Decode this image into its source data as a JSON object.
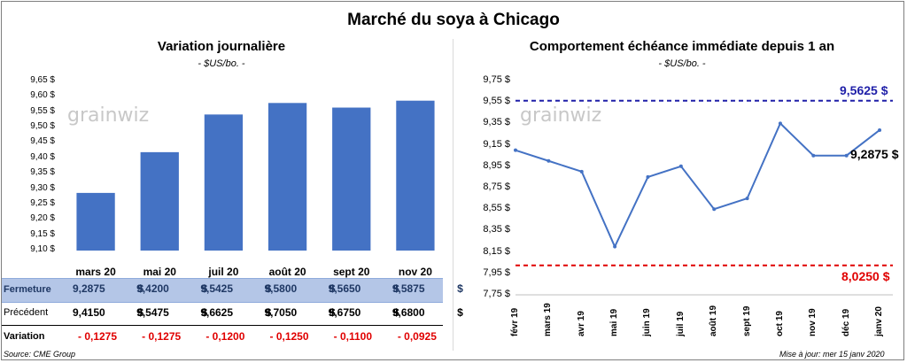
{
  "title": "Marché du soya à Chicago",
  "left": {
    "subtitle": "Variation journalière",
    "unit": "- $US/bo. -",
    "watermark": "grainwiz",
    "yticks": [
      "9,65 $",
      "9,60 $",
      "9,55 $",
      "9,50 $",
      "9,45 $",
      "9,40 $",
      "9,35 $",
      "9,30 $",
      "9,25 $",
      "9,20 $",
      "9,15 $",
      "9,10 $"
    ],
    "table": {
      "fermeture_label": "Fermeture",
      "precedent_label": "Précédent",
      "variation_label": "Variation",
      "fermeture": [
        "9,2875",
        "9,4200",
        "9,5425",
        "9,5800",
        "9,5650",
        "9,5875"
      ],
      "precedent": [
        "9,4150",
        "9,5475",
        "9,6625",
        "9,7050",
        "9,6750",
        "9,6800"
      ],
      "variation": [
        "- 0,1275",
        "- 0,1275",
        "- 0,1200",
        "- 0,1250",
        "- 0,1100",
        "- 0,0925"
      ],
      "currency": "$"
    },
    "source": "Source: CME Group"
  },
  "right": {
    "subtitle": "Comportement  échéance immédiate depuis 1 an",
    "unit": "- $US/bo. -",
    "watermark": "grainwiz",
    "yticks": [
      "9,75 $",
      "9,55 $",
      "9,35 $",
      "9,15 $",
      "8,95 $",
      "8,75 $",
      "8,55 $",
      "8,35 $",
      "8,15 $",
      "7,95 $",
      "7,75 $"
    ],
    "xdates": [
      "févr 19",
      "mars 19",
      "avr 19",
      "mai 19",
      "juin 19",
      "juil 19",
      "août 19",
      "sept 19",
      "oct 19",
      "nov 19",
      "déc 19",
      "janv 20"
    ],
    "high_label": "9,5625 $",
    "low_label": "8,0250 $",
    "last_label": "9,2875 $",
    "update": "Mise à jour: mer 15 janv 2020"
  },
  "colors": {
    "bar": "#4472c4",
    "line": "#4472c4",
    "high": "#1f1fa8",
    "low": "#e00000",
    "table_highlight": "#b4c6e7"
  },
  "chart_data": [
    {
      "type": "bar",
      "title": "Variation journalière",
      "categories": [
        "mars 20",
        "mai 20",
        "juil 20",
        "août 20",
        "sept 20",
        "nov 20"
      ],
      "values": [
        9.2875,
        9.42,
        9.5425,
        9.58,
        9.565,
        9.5875
      ],
      "ylabel": "$US/bo.",
      "ylim": [
        9.1,
        9.65
      ]
    },
    {
      "type": "line",
      "title": "Comportement  échéance immédiate depuis 1 an",
      "ylabel": "$US/bo.",
      "ylim": [
        7.75,
        9.75
      ],
      "x": [
        "févr 19",
        "mars 19",
        "avr 19",
        "mai 19",
        "juin 19",
        "juil 19",
        "août 19",
        "sept 19",
        "oct 19",
        "nov 19",
        "déc 19",
        "janv 20"
      ],
      "values": [
        9.1,
        9.0,
        8.9,
        8.2,
        8.85,
        8.95,
        8.55,
        8.65,
        9.35,
        9.05,
        9.05,
        9.2875
      ],
      "reference_lines": [
        {
          "label": "9,5625 $",
          "value": 9.5625
        },
        {
          "label": "8,0250 $",
          "value": 8.025
        }
      ]
    }
  ]
}
